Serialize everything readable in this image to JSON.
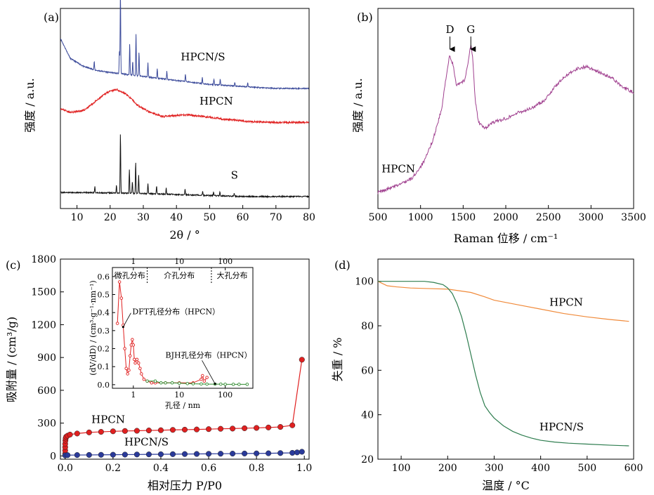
{
  "chart_data": [
    {
      "id": "a",
      "type": "line",
      "panel_label": "(a)",
      "xlabel": "2θ / °",
      "ylabel": "强度 / a.u.",
      "xlim": [
        5,
        80
      ],
      "x_ticks": [
        10,
        20,
        30,
        40,
        50,
        60,
        70,
        80
      ],
      "y_ticks_shown": false,
      "y_scale": "arbitrary (0–100, offset traces)",
      "series": [
        {
          "name": "HPCN/S",
          "color": "#3b4a9a",
          "baseline": [
            [
              5,
              85
            ],
            [
              8,
              75
            ],
            [
              12,
              71
            ],
            [
              16,
              69
            ],
            [
              20,
              68
            ],
            [
              25,
              67
            ],
            [
              30,
              66
            ],
            [
              40,
              64
            ],
            [
              50,
              62
            ],
            [
              60,
              61
            ],
            [
              70,
              60
            ],
            [
              80,
              60
            ]
          ],
          "peaks": [
            [
              15.2,
              4
            ],
            [
              22.8,
              12
            ],
            [
              23.1,
              42
            ],
            [
              25.9,
              16
            ],
            [
              26.8,
              7
            ],
            [
              27.8,
              21
            ],
            [
              28.7,
              12
            ],
            [
              31.4,
              7
            ],
            [
              34.2,
              5
            ],
            [
              37.1,
              4
            ],
            [
              42.7,
              4
            ],
            [
              47.8,
              3
            ],
            [
              51.3,
              3
            ],
            [
              53.2,
              3
            ],
            [
              57.6,
              2
            ],
            [
              61.5,
              2
            ]
          ]
        },
        {
          "name": "HPCN",
          "color": "#e02020",
          "baseline": [
            [
              5,
              50
            ],
            [
              8,
              48
            ],
            [
              12,
              49
            ],
            [
              16,
              54
            ],
            [
              19,
              58
            ],
            [
              22,
              59.5
            ],
            [
              25,
              57
            ],
            [
              28,
              52
            ],
            [
              32,
              48
            ],
            [
              36,
              46
            ],
            [
              40,
              46.5
            ],
            [
              44,
              46.8
            ],
            [
              48,
              46
            ],
            [
              55,
              44.5
            ],
            [
              62,
              43.5
            ],
            [
              70,
              43
            ],
            [
              80,
              43
            ]
          ],
          "peaks": []
        },
        {
          "name": "S",
          "color": "#111111",
          "baseline": [
            [
              5,
              8
            ],
            [
              10,
              8
            ],
            [
              20,
              7.8
            ],
            [
              30,
              7.5
            ],
            [
              40,
              7
            ],
            [
              50,
              6.5
            ],
            [
              60,
              6
            ],
            [
              70,
              6
            ],
            [
              80,
              6
            ]
          ],
          "peaks": [
            [
              15.4,
              3
            ],
            [
              21.9,
              4
            ],
            [
              23.1,
              30
            ],
            [
              25.8,
              12
            ],
            [
              26.7,
              6
            ],
            [
              27.7,
              16
            ],
            [
              28.6,
              9
            ],
            [
              31.4,
              5
            ],
            [
              34.0,
              4
            ],
            [
              36.9,
              3
            ],
            [
              42.6,
              3
            ],
            [
              47.9,
              2
            ],
            [
              51.2,
              2
            ],
            [
              53.1,
              2
            ],
            [
              57.4,
              1.5
            ]
          ]
        }
      ],
      "annotations": [
        {
          "text": "HPCN/S",
          "x": 48,
          "y": 74
        },
        {
          "text": "HPCN",
          "x": 52,
          "y": 52
        },
        {
          "text": "S",
          "x": 57.5,
          "y": 15
        }
      ]
    },
    {
      "id": "b",
      "type": "line",
      "panel_label": "(b)",
      "xlabel": "Raman 位移 / cm⁻¹",
      "ylabel": "强度 / a.u.",
      "xlim": [
        500,
        3500
      ],
      "x_ticks": [
        500,
        1000,
        1500,
        2000,
        2500,
        3000,
        3500
      ],
      "y_ticks_shown": false,
      "series": [
        {
          "name": "HPCN",
          "color": "#a0408f",
          "x": [
            500,
            700,
            900,
            1050,
            1150,
            1250,
            1300,
            1340,
            1380,
            1420,
            1470,
            1520,
            1560,
            1590,
            1610,
            1640,
            1680,
            1750,
            1850,
            2000,
            2150,
            2300,
            2450,
            2600,
            2750,
            2850,
            2950,
            3100,
            3250,
            3400,
            3500
          ],
          "y": [
            8,
            11,
            15,
            24,
            35,
            50,
            66,
            76,
            72,
            62,
            63,
            64,
            74,
            82,
            76,
            55,
            43,
            40,
            43,
            45,
            48,
            50,
            54,
            62,
            68,
            70,
            71,
            68,
            65,
            60,
            58
          ]
        }
      ],
      "annotations": [
        {
          "text": "D",
          "x": 1345,
          "arrow": true
        },
        {
          "text": "G",
          "x": 1590,
          "arrow": true
        },
        {
          "text": "HPCN",
          "x": 740,
          "y": 18
        }
      ]
    },
    {
      "id": "c",
      "type": "line",
      "panel_label": "(c)",
      "xlabel": "相对压力 P/P0",
      "ylabel": "吸附量 / (cm³/g)",
      "xlim": [
        -0.02,
        1.02
      ],
      "ylim": [
        -30,
        1800
      ],
      "x_ticks": [
        0.0,
        0.2,
        0.4,
        0.6,
        0.8,
        1.0
      ],
      "y_ticks": [
        0,
        300,
        600,
        900,
        1200,
        1500,
        1800
      ],
      "series": [
        {
          "name": "HPCN",
          "color": "#e02020",
          "x": [
            0.0,
            0.0,
            0.0,
            0.0,
            0.001,
            0.002,
            0.004,
            0.01,
            0.02,
            0.05,
            0.1,
            0.15,
            0.2,
            0.25,
            0.3,
            0.35,
            0.4,
            0.45,
            0.5,
            0.55,
            0.6,
            0.65,
            0.7,
            0.75,
            0.8,
            0.85,
            0.9,
            0.95,
            0.99
          ],
          "y": [
            20,
            50,
            80,
            110,
            140,
            160,
            175,
            185,
            195,
            205,
            215,
            220,
            225,
            228,
            230,
            233,
            235,
            238,
            240,
            242,
            245,
            248,
            250,
            253,
            256,
            260,
            265,
            280,
            880
          ]
        },
        {
          "name": "HPCN/S",
          "color": "#2a3a9a",
          "x": [
            0.0,
            0.01,
            0.05,
            0.1,
            0.15,
            0.2,
            0.25,
            0.3,
            0.35,
            0.4,
            0.45,
            0.5,
            0.55,
            0.6,
            0.65,
            0.7,
            0.75,
            0.8,
            0.85,
            0.9,
            0.95,
            0.97,
            0.99
          ],
          "y": [
            5,
            7,
            8,
            9,
            10,
            11,
            12,
            13,
            14,
            15,
            16,
            17,
            18,
            19,
            20,
            21,
            22,
            23,
            24,
            26,
            28,
            32,
            38
          ]
        }
      ],
      "annotations": [
        {
          "text": "HPCN",
          "x": 0.18,
          "y": 300
        },
        {
          "text": "HPCN/S",
          "x": 0.34,
          "y": 95
        }
      ],
      "inset": {
        "xlabel": "孔径 / nm",
        "ylabel": "(dV/dD) / (cm³·g⁻¹·nm⁻¹)",
        "x_scale": "log",
        "xlim": [
          0.35,
          400
        ],
        "ylim": [
          -0.02,
          0.65
        ],
        "x_ticks": [
          1,
          10,
          100
        ],
        "y_ticks": [
          0.0,
          0.1,
          0.2,
          0.3,
          0.4,
          0.5,
          0.6
        ],
        "regions": [
          {
            "text": "微孔分布",
            "x_end": 2
          },
          {
            "text": "介孔分布",
            "x_end": 50
          },
          {
            "text": "大孔分布",
            "x_end": 400
          }
        ],
        "region_boundaries": [
          2,
          50
        ],
        "series": [
          {
            "name": "DFT孔径分布（HPCN）",
            "color": "#e02020",
            "x": [
              0.45,
              0.5,
              0.55,
              0.6,
              0.65,
              0.7,
              0.75,
              0.8,
              0.85,
              0.9,
              0.95,
              1.0,
              1.05,
              1.1,
              1.2,
              1.3,
              1.4,
              1.5,
              1.7,
              2.0,
              2.5,
              3,
              5,
              10,
              20,
              30,
              32,
              35,
              40
            ],
            "y": [
              0.34,
              0.57,
              0.48,
              0.33,
              0.2,
              0.09,
              0.06,
              0.08,
              0.16,
              0.22,
              0.25,
              0.22,
              0.14,
              0.12,
              0.14,
              0.12,
              0.09,
              0.06,
              0.03,
              0.02,
              0.01,
              0.01,
              0.01,
              0.01,
              0.01,
              0.03,
              0.05,
              0.02,
              0.04
            ]
          },
          {
            "name": "BJH孔径分布（HPCN）",
            "color": "#2e8b2e",
            "x": [
              2,
              3,
              4,
              5,
              7,
              10,
              15,
              20,
              30,
              40,
              60,
              80,
              100,
              150,
              200,
              300
            ],
            "y": [
              0.02,
              0.02,
              0.01,
              0.01,
              0.01,
              0.008,
              0.006,
              0.005,
              0.004,
              0.003,
              0.003,
              0.003,
              0.002,
              0.002,
              0.002,
              0.002
            ]
          }
        ],
        "annotations": [
          {
            "text": "DFT孔径分布（HPCN）",
            "x": 0.95,
            "y": 0.39,
            "arrow_to": [
              0.6,
              0.32
            ]
          },
          {
            "text": "BJH孔径分布（HPCN）",
            "x": 5,
            "y": 0.15,
            "arrow_to": [
              60,
              0.005
            ]
          }
        ]
      }
    },
    {
      "id": "d",
      "type": "line",
      "panel_label": "(d)",
      "xlabel": "温度 / °C",
      "ylabel": "失重 / %",
      "xlim": [
        50,
        600
      ],
      "ylim": [
        20,
        110
      ],
      "x_ticks": [
        100,
        200,
        300,
        400,
        500,
        600
      ],
      "y_ticks": [
        20,
        40,
        60,
        80,
        100
      ],
      "series": [
        {
          "name": "HPCN",
          "color": "#f08a3a",
          "x": [
            50,
            70,
            90,
            120,
            150,
            200,
            250,
            280,
            300,
            350,
            400,
            450,
            500,
            550,
            590
          ],
          "y": [
            100,
            98,
            97.5,
            97,
            96.8,
            96.5,
            95,
            93,
            91.5,
            89.5,
            87.5,
            85.5,
            84,
            82.8,
            82
          ]
        },
        {
          "name": "HPCN/S",
          "color": "#2e7d4f",
          "x": [
            50,
            100,
            150,
            170,
            190,
            200,
            210,
            220,
            230,
            240,
            250,
            260,
            270,
            280,
            290,
            300,
            320,
            340,
            360,
            380,
            400,
            430,
            460,
            500,
            550,
            590
          ],
          "y": [
            100,
            100,
            100,
            99.5,
            98.5,
            97,
            94.5,
            90,
            84,
            76,
            67,
            58,
            50,
            44,
            41,
            38.5,
            35,
            32.5,
            30.8,
            29.5,
            28.5,
            27.7,
            27.2,
            26.8,
            26.3,
            26
          ]
        }
      ],
      "annotations": [
        {
          "text": "HPCN",
          "x": 455,
          "y": 89
        },
        {
          "text": "HPCN/S",
          "x": 445,
          "y": 33
        }
      ]
    }
  ]
}
